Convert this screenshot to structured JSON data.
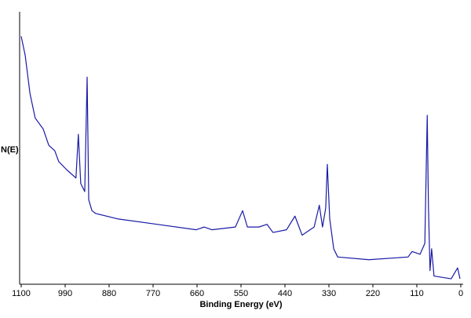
{
  "chart_data": {
    "type": "line",
    "x_label": "Binding Energy (eV)",
    "y_label": "N(E)",
    "x": [
      1100,
      1090,
      1078,
      1065,
      1045,
      1031,
      1016,
      1006,
      986,
      963,
      957,
      951,
      941,
      935,
      931,
      923,
      914,
      859,
      760,
      662,
      642,
      623,
      564,
      546,
      534,
      505,
      485,
      470,
      436,
      415,
      397,
      367,
      354,
      346,
      338,
      334,
      328,
      318,
      308,
      230,
      132,
      122,
      102,
      90,
      84,
      81,
      77,
      73,
      67,
      24,
      8,
      2
    ],
    "values": [
      91,
      84,
      70,
      61,
      57,
      51,
      49,
      45,
      42,
      39,
      55,
      37,
      34,
      76,
      31,
      27,
      26,
      24,
      22,
      20,
      21,
      20,
      21,
      27,
      21,
      21,
      22,
      19,
      20,
      25,
      18,
      21,
      29,
      21,
      28,
      44,
      24,
      13,
      10,
      9,
      10,
      12,
      11,
      15,
      62,
      29,
      5,
      13,
      3,
      2,
      6,
      2
    ],
    "color": "#1a1aa6",
    "xlim": [
      1100,
      0
    ],
    "xticks": [
      1100,
      990,
      880,
      770,
      660,
      550,
      440,
      330,
      220,
      110,
      0
    ],
    "ylim": [
      0,
      100
    ]
  }
}
